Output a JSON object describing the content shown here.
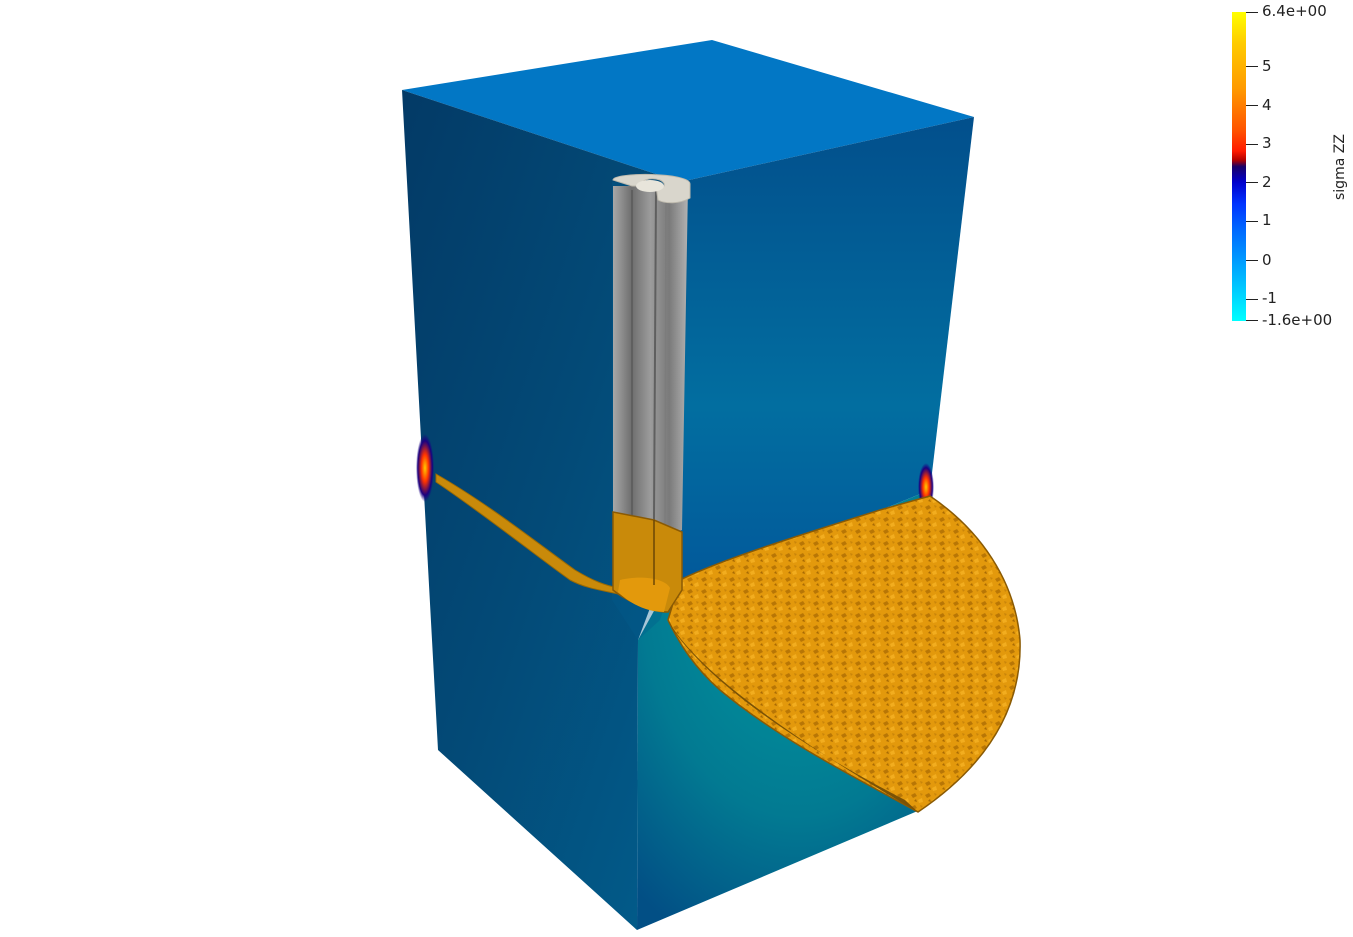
{
  "colorbar": {
    "title": "sigma ZZ",
    "max_label": "6.4e+00",
    "min_label": "-1.6e+00",
    "ticks": [
      "5",
      "4",
      "3",
      "2",
      "1",
      "0",
      "-1"
    ],
    "range": [
      -1.6,
      6.4
    ]
  },
  "colors": {
    "block_top": "#0277c5",
    "block_left": "#034f85",
    "block_right": "#02629c",
    "cut_face": "#02888f",
    "casing_light": "#d9d6cc",
    "casing_grey": "#8a8a8a",
    "fracture_orange": "#e3990c"
  }
}
